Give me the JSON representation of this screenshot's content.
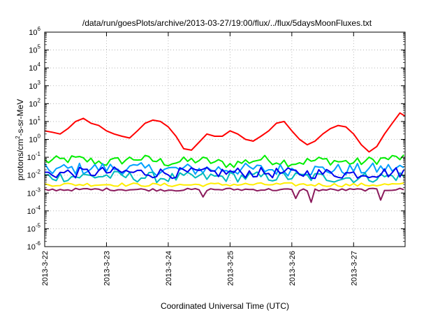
{
  "chart_data": {
    "type": "line",
    "title": "/data/run/goesPlots/archive/2013-03-27/19:00/flux/../flux/5daysMoonFluxes.txt",
    "xlabel": "Coordinated Universal Time (UTC)",
    "ylabel": {
      "base": "protons/cm",
      "sup": "2",
      "rest": "-s-sr-MeV"
    },
    "yscale": "log",
    "ylim": [
      1e-06,
      1000000.0
    ],
    "xlim": [
      "2013-03-22",
      "2013-03-27 20:00"
    ],
    "grid": true,
    "y_ticks": [
      {
        "value": 1e-06,
        "exp": "-6"
      },
      {
        "value": 1e-05,
        "exp": "-5"
      },
      {
        "value": 0.0001,
        "exp": "-4"
      },
      {
        "value": 0.001,
        "exp": "-3"
      },
      {
        "value": 0.01,
        "exp": "-2"
      },
      {
        "value": 0.1,
        "exp": "-1"
      },
      {
        "value": 1,
        "exp": "0"
      },
      {
        "value": 10,
        "exp": "1"
      },
      {
        "value": 100,
        "exp": "2"
      },
      {
        "value": 1000.0,
        "exp": "3"
      },
      {
        "value": 10000.0,
        "exp": "4"
      },
      {
        "value": 100000.0,
        "exp": "5"
      },
      {
        "value": 1000000.0,
        "exp": "6"
      }
    ],
    "x_ticks": [
      "2013-3-22",
      "2013-3-23",
      "2013-3-24",
      "2013-3-25",
      "2013-3-26",
      "2013-3-27"
    ],
    "series": [
      {
        "color": "#ff0000",
        "x": [
          "2013-03-22 00:00",
          "2013-03-22 03:00",
          "2013-03-22 06:00",
          "2013-03-22 09:00",
          "2013-03-22 12:00",
          "2013-03-22 15:00",
          "2013-03-22 18:00",
          "2013-03-22 21:00",
          "2013-03-23 00:00",
          "2013-03-23 03:00",
          "2013-03-23 06:00",
          "2013-03-23 09:00",
          "2013-03-23 12:00",
          "2013-03-23 15:00",
          "2013-03-23 18:00",
          "2013-03-23 21:00",
          "2013-03-24 00:00",
          "2013-03-24 03:00",
          "2013-03-24 06:00",
          "2013-03-24 09:00",
          "2013-03-24 12:00",
          "2013-03-24 15:00",
          "2013-03-24 18:00",
          "2013-03-24 21:00",
          "2013-03-25 00:00",
          "2013-03-25 03:00",
          "2013-03-25 06:00",
          "2013-03-25 09:00",
          "2013-03-25 12:00",
          "2013-03-25 15:00",
          "2013-03-25 18:00",
          "2013-03-25 21:00",
          "2013-03-26 00:00",
          "2013-03-26 03:00",
          "2013-03-26 06:00",
          "2013-03-26 09:00",
          "2013-03-26 12:00",
          "2013-03-26 15:00",
          "2013-03-26 18:00",
          "2013-03-26 21:00",
          "2013-03-27 00:00",
          "2013-03-27 03:00",
          "2013-03-27 06:00",
          "2013-03-27 09:00",
          "2013-03-27 12:00",
          "2013-03-27 15:00",
          "2013-03-27 18:00",
          "2013-03-27 20:00"
        ],
        "y": [
          3,
          2.5,
          2,
          4,
          10,
          15,
          8,
          6,
          3,
          2,
          1.5,
          1.2,
          3,
          8,
          12,
          10,
          5,
          1.5,
          0.3,
          0.25,
          0.7,
          2,
          1.5,
          1.5,
          3,
          2,
          1,
          0.8,
          1.5,
          3,
          8,
          10,
          3,
          1,
          0.5,
          0.8,
          2,
          4,
          6,
          5,
          2,
          0.5,
          0.2,
          0.4,
          2,
          8,
          30,
          20
        ]
      },
      {
        "color": "#00ee00",
        "x": [
          "2013-03-22 00:00",
          "2013-03-22 12:00",
          "2013-03-23 00:00",
          "2013-03-23 12:00",
          "2013-03-24 00:00",
          "2013-03-24 12:00",
          "2013-03-25 00:00",
          "2013-03-25 12:00",
          "2013-03-26 00:00",
          "2013-03-26 12:00",
          "2013-03-27 00:00",
          "2013-03-27 12:00",
          "2013-03-27 20:00"
        ],
        "y": [
          0.06,
          0.08,
          0.05,
          0.09,
          0.05,
          0.07,
          0.04,
          0.08,
          0.05,
          0.07,
          0.05,
          0.08,
          0.1
        ],
        "noise": 0.5,
        "step_hours": 1.5
      },
      {
        "color": "#00a0ff",
        "x": [
          "2013-03-22 00:00",
          "2013-03-23 00:00",
          "2013-03-24 00:00",
          "2013-03-25 00:00",
          "2013-03-26 00:00",
          "2013-03-27 00:00",
          "2013-03-27 20:00"
        ],
        "y": [
          0.02,
          0.025,
          0.02,
          0.022,
          0.02,
          0.02,
          0.025
        ],
        "noise": 0.7,
        "step_hours": 1.5
      },
      {
        "color": "#00bbbb",
        "x": [
          "2013-03-22 00:00",
          "2013-03-23 00:00",
          "2013-03-24 00:00",
          "2013-03-25 00:00",
          "2013-03-26 00:00",
          "2013-03-27 00:00",
          "2013-03-27 20:00"
        ],
        "y": [
          0.008,
          0.009,
          0.007,
          0.008,
          0.008,
          0.007,
          0.009
        ],
        "noise": 0.6,
        "step_hours": 1.5
      },
      {
        "color": "#0000ee",
        "x": [
          "2013-03-22 00:00",
          "2013-03-23 00:00",
          "2013-03-24 00:00",
          "2013-03-25 00:00",
          "2013-03-26 00:00",
          "2013-03-27 00:00",
          "2013-03-27 20:00"
        ],
        "y": [
          0.012,
          0.015,
          0.013,
          0.014,
          0.013,
          0.012,
          0.015
        ],
        "noise": 0.6,
        "step_hours": 1.5
      },
      {
        "color": "#ffee00",
        "x": [
          "2013-03-22 00:00",
          "2013-03-23 00:00",
          "2013-03-24 00:00",
          "2013-03-25 00:00",
          "2013-03-26 00:00",
          "2013-03-27 00:00",
          "2013-03-27 20:00"
        ],
        "y": [
          0.003,
          0.003,
          0.0028,
          0.003,
          0.003,
          0.0028,
          0.003
        ],
        "noise": 0.2,
        "step_hours": 1.5
      },
      {
        "color": "#8b1a5c",
        "x": [
          "2013-03-22 00:00",
          "2013-03-23 00:00",
          "2013-03-24 00:00",
          "2013-03-25 00:00",
          "2013-03-26 00:00",
          "2013-03-27 00:00",
          "2013-03-27 20:00"
        ],
        "y": [
          0.0015,
          0.0016,
          0.0015,
          0.0016,
          0.0015,
          0.0015,
          0.0016
        ],
        "noise": 0.15,
        "step_hours": 1.5,
        "dips": [
          {
            "x": "2013-03-24 14:00",
            "y": 0.0006
          },
          {
            "x": "2013-03-26 02:00",
            "y": 0.0005
          },
          {
            "x": "2013-03-26 08:00",
            "y": 0.0003
          },
          {
            "x": "2013-03-27 10:00",
            "y": 0.0004
          }
        ]
      }
    ]
  }
}
